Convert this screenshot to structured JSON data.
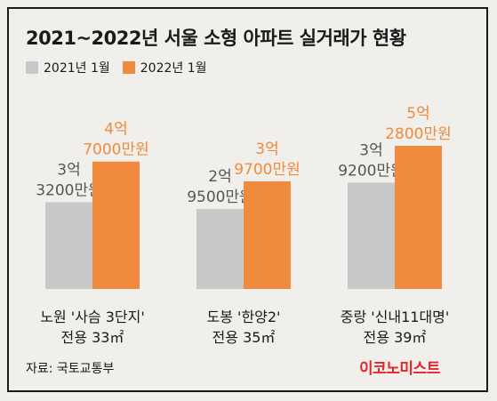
{
  "title": "2021~2022년 서울 소형 아파트 실거래가 현황",
  "colors": {
    "y2021": "#c8c8c8",
    "y2022": "#f08a3c",
    "label2022": "#f08a3c",
    "text": "#1a1a1a"
  },
  "source": "자료: 국토교통부",
  "logo": "이코노미스트",
  "chart_data": {
    "type": "bar",
    "categories": [
      [
        "노원 '사슴 3단지'",
        "전용 33㎡"
      ],
      [
        "도봉 '한양2'",
        "전용 35㎡"
      ],
      [
        "중랑 '신내11대명'",
        "전용 39㎡"
      ]
    ],
    "series": [
      {
        "name": "2021년 1월",
        "values": [
          32000,
          29500,
          39200
        ],
        "labels": [
          [
            "3억",
            "3200만원"
          ],
          [
            "2억",
            "9500만원"
          ],
          [
            "3억",
            "9200만원"
          ]
        ]
      },
      {
        "name": "2022년 1월",
        "values": [
          47000,
          39700,
          52800
        ],
        "labels": [
          [
            "4억",
            "7000만원"
          ],
          [
            "3억",
            "9700만원"
          ],
          [
            "5억",
            "2800만원"
          ]
        ]
      }
    ],
    "unit": "만원",
    "legend": "top-left",
    "grid": false
  }
}
